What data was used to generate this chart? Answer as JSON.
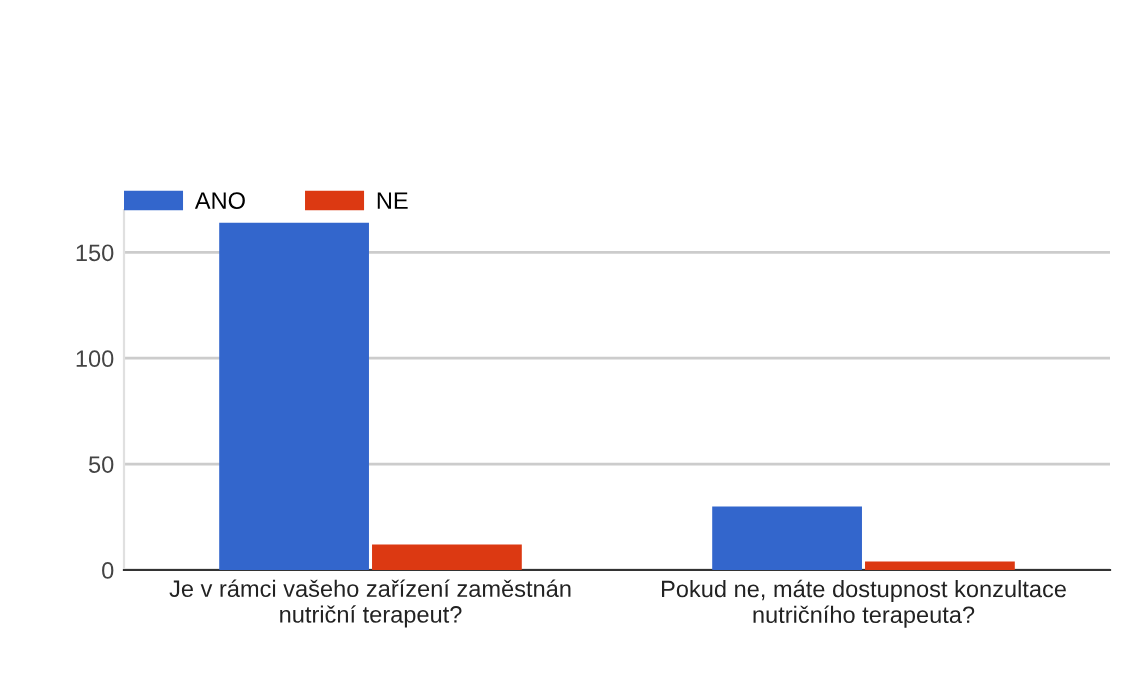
{
  "chart_data": {
    "type": "bar",
    "categories": [
      "Je v rámci vašeho zařízení zaměstnán nutriční terapeut?",
      "Pokud ne, máte dostupnost konzultace nutričního terapeuta?"
    ],
    "series": [
      {
        "name": "ANO",
        "color": "#3366cc",
        "values": [
          164,
          30
        ]
      },
      {
        "name": "NE",
        "color": "#dc3912",
        "values": [
          12,
          4
        ]
      }
    ],
    "ylim": [
      0,
      170
    ],
    "yticks": [
      0,
      50,
      100,
      150
    ],
    "grid": "y",
    "legend": "top left"
  }
}
